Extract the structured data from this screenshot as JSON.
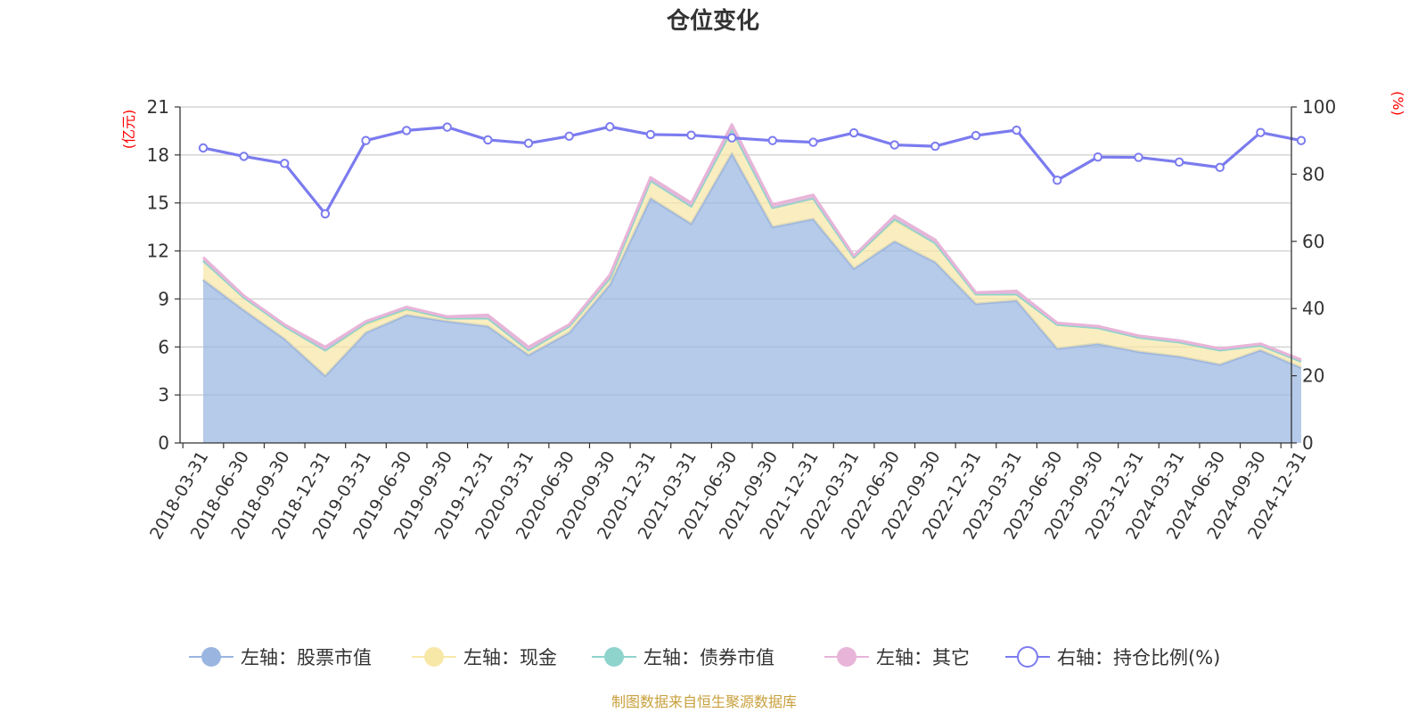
{
  "chart_data": {
    "type": "area",
    "title": "仓位变化",
    "left_axis_unit": "(亿元)",
    "right_axis_unit": "(%)",
    "ylim_left": [
      0,
      21
    ],
    "yticks_left": [
      "0",
      "3",
      "6",
      "9",
      "12",
      "15",
      "18",
      "21"
    ],
    "ylim_right": [
      0,
      100
    ],
    "yticks_right": [
      "0",
      "20",
      "40",
      "60",
      "80",
      "100"
    ],
    "categories": [
      "2018-03-31",
      "2018-06-30",
      "2018-09-30",
      "2018-12-31",
      "2019-03-31",
      "2019-06-30",
      "2019-09-30",
      "2019-12-31",
      "2020-03-31",
      "2020-06-30",
      "2020-09-30",
      "2020-12-31",
      "2021-03-31",
      "2021-06-30",
      "2021-09-30",
      "2021-12-31",
      "2022-03-31",
      "2022-06-30",
      "2022-09-30",
      "2022-12-31",
      "2023-03-31",
      "2023-06-30",
      "2023-09-30",
      "2023-12-31",
      "2024-03-31",
      "2024-06-30",
      "2024-09-30",
      "2024-12-31"
    ],
    "series": [
      {
        "name": "左轴：股票市值",
        "axis": "left",
        "stacked": true,
        "color": "#9ab5e0",
        "values": [
          10.2,
          8.3,
          6.5,
          4.2,
          6.9,
          8.0,
          7.6,
          7.3,
          5.5,
          6.9,
          9.9,
          15.3,
          13.7,
          18.1,
          13.5,
          14.0,
          10.9,
          12.6,
          11.3,
          8.7,
          8.9,
          5.9,
          6.2,
          5.7,
          5.4,
          4.9,
          5.8,
          4.7
        ]
      },
      {
        "name": "左轴：现金",
        "axis": "left",
        "stacked": true,
        "color": "#f8e8a8",
        "values": [
          1.2,
          0.8,
          0.8,
          1.6,
          0.5,
          0.3,
          0.2,
          0.5,
          0.3,
          0.4,
          0.4,
          1.1,
          1.1,
          1.5,
          1.2,
          1.3,
          0.7,
          1.3,
          1.2,
          0.6,
          0.4,
          1.5,
          1.0,
          0.9,
          0.9,
          0.9,
          0.3,
          0.4
        ]
      },
      {
        "name": "左轴：债券市值",
        "axis": "left",
        "stacked": true,
        "color": "#8fd3cd",
        "values": [
          0.0,
          0.0,
          0.0,
          0.0,
          0.1,
          0.1,
          0.0,
          0.0,
          0.0,
          0.0,
          0.0,
          0.0,
          0.0,
          0.0,
          0.0,
          0.0,
          0.0,
          0.1,
          0.0,
          0.0,
          0.0,
          0.0,
          0.0,
          0.0,
          0.0,
          0.0,
          0.0,
          0.0
        ]
      },
      {
        "name": "左轴：其它",
        "axis": "left",
        "stacked": true,
        "color": "#e8b4d8",
        "values": [
          0.2,
          0.1,
          0.1,
          0.2,
          0.1,
          0.1,
          0.1,
          0.2,
          0.2,
          0.1,
          0.2,
          0.2,
          0.2,
          0.3,
          0.2,
          0.2,
          0.1,
          0.2,
          0.2,
          0.1,
          0.2,
          0.1,
          0.1,
          0.1,
          0.1,
          0.1,
          0.1,
          0.1
        ]
      },
      {
        "name": "右轴：持仓比例(%)",
        "axis": "right",
        "stacked": false,
        "color": "#7b7bef",
        "values": [
          87.8,
          85.3,
          83.2,
          68.2,
          90.0,
          93.0,
          94.0,
          90.2,
          89.2,
          91.3,
          94.1,
          91.8,
          91.6,
          90.8,
          90.0,
          89.5,
          92.3,
          88.7,
          88.3,
          91.5,
          93.1,
          78.2,
          85.1,
          85.0,
          83.6,
          82.0,
          92.4,
          90.0
        ]
      }
    ],
    "legend_position": "bottom",
    "grid": true
  },
  "source_note": "制图数据来自恒生聚源数据库"
}
